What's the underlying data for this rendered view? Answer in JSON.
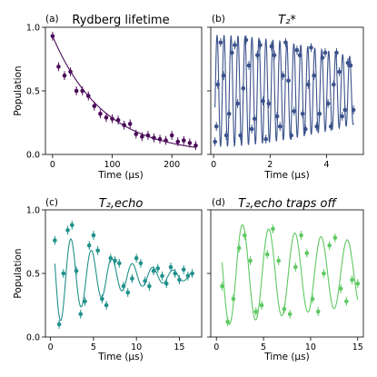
{
  "chart_data": [
    {
      "type": "scatter",
      "panel": "(a)",
      "title": "Rydberg lifetime",
      "xlabel": "Time (μs)",
      "ylabel": "Population",
      "xlim": [
        -12,
        250
      ],
      "ylim": [
        0.0,
        1.0
      ],
      "xticks": [
        0,
        100,
        200
      ],
      "yticks": [
        0.0,
        0.5,
        1.0
      ],
      "color": "#4b0c5a",
      "fit": {
        "model": "exponential",
        "A": 0.93,
        "tau": 85
      },
      "x": [
        0,
        10,
        20,
        30,
        40,
        50,
        60,
        70,
        80,
        90,
        100,
        110,
        120,
        130,
        140,
        150,
        160,
        170,
        180,
        190,
        200,
        210,
        220,
        230,
        240
      ],
      "y": [
        0.93,
        0.69,
        0.62,
        0.65,
        0.5,
        0.5,
        0.46,
        0.38,
        0.32,
        0.29,
        0.28,
        0.27,
        0.23,
        0.24,
        0.16,
        0.14,
        0.15,
        0.13,
        0.12,
        0.11,
        0.15,
        0.1,
        0.11,
        0.09,
        0.07
      ]
    },
    {
      "type": "scatter",
      "panel": "(b)",
      "title": "T₂*",
      "xlabel": "Time (μs)",
      "ylabel": "",
      "xlim": [
        -0.1,
        5.3
      ],
      "ylim": [
        0.0,
        1.0
      ],
      "xticks": [
        0,
        2,
        4
      ],
      "yticks": [
        0.0,
        0.5,
        1.0
      ],
      "color": "#3b528b",
      "fit": {
        "model": "gaussian-decaying cosine",
        "offset": 0.5,
        "amplitude": 0.44,
        "frequency": 4.05,
        "phase": 3.14159,
        "tstar": 7.0
      },
      "x": [
        0.05,
        0.1,
        0.15,
        0.25,
        0.35,
        0.45,
        0.55,
        0.65,
        0.75,
        0.85,
        0.95,
        1.05,
        1.15,
        1.25,
        1.35,
        1.45,
        1.55,
        1.65,
        1.75,
        1.85,
        1.95,
        2.05,
        2.15,
        2.25,
        2.35,
        2.45,
        2.55,
        2.65,
        2.75,
        2.85,
        2.95,
        3.05,
        3.15,
        3.25,
        3.35,
        3.45,
        3.55,
        3.65,
        3.75,
        3.85,
        3.95,
        4.05,
        4.15,
        4.25,
        4.35,
        4.45,
        4.55,
        4.65,
        4.75,
        4.85,
        4.95
      ],
      "y": [
        0.1,
        0.22,
        0.55,
        0.88,
        0.62,
        0.15,
        0.32,
        0.8,
        0.86,
        0.4,
        0.15,
        0.52,
        0.9,
        0.7,
        0.2,
        0.28,
        0.78,
        0.86,
        0.42,
        0.12,
        0.4,
        0.85,
        0.78,
        0.3,
        0.22,
        0.62,
        0.88,
        0.58,
        0.15,
        0.34,
        0.82,
        0.78,
        0.32,
        0.2,
        0.55,
        0.84,
        0.62,
        0.22,
        0.32,
        0.76,
        0.8,
        0.4,
        0.22,
        0.55,
        0.8,
        0.65,
        0.3,
        0.35,
        0.72,
        0.7,
        0.35
      ]
    },
    {
      "type": "scatter",
      "panel": "(c)",
      "title": "T₂,echo",
      "xlabel": "Time (μs)",
      "ylabel": "Population",
      "xlim": [
        -0.6,
        17.6
      ],
      "ylim": [
        0.0,
        1.0
      ],
      "xticks": [
        0,
        5,
        10,
        15
      ],
      "yticks": [
        0.0,
        0.5,
        1.0
      ],
      "color": "#21918c",
      "fit": {
        "model": "decaying cosine",
        "offset": 0.48,
        "amplitude": 0.42,
        "frequency": 0.42,
        "phase": 0.0,
        "tau": 6.5
      },
      "x": [
        0.5,
        1.0,
        1.5,
        2.0,
        2.5,
        3.0,
        3.5,
        4.0,
        4.5,
        5.0,
        5.5,
        6.0,
        6.5,
        7.0,
        7.5,
        8.0,
        8.5,
        9.0,
        9.5,
        10.0,
        10.5,
        11.0,
        11.5,
        12.0,
        12.5,
        13.0,
        13.5,
        14.0,
        14.5,
        15.0,
        15.5,
        16.0,
        16.5
      ],
      "y": [
        0.76,
        0.1,
        0.5,
        0.84,
        0.88,
        0.52,
        0.18,
        0.28,
        0.72,
        0.8,
        0.68,
        0.3,
        0.25,
        0.62,
        0.6,
        0.58,
        0.4,
        0.35,
        0.46,
        0.62,
        0.58,
        0.44,
        0.4,
        0.52,
        0.54,
        0.48,
        0.42,
        0.55,
        0.5,
        0.45,
        0.53,
        0.48,
        0.5
      ]
    },
    {
      "type": "scatter",
      "panel": "(d)",
      "title": "T₂,echo traps off",
      "xlabel": "Time (μs)",
      "ylabel": "",
      "xlim": [
        -0.6,
        15.6
      ],
      "ylim": [
        0.0,
        1.0
      ],
      "xticks": [
        0,
        5,
        10,
        15
      ],
      "yticks": [
        0.0,
        0.5,
        1.0
      ],
      "color": "#5ec962",
      "fit": {
        "model": "decaying cosine",
        "offset": 0.5,
        "amplitude": 0.42,
        "frequency": 0.36,
        "phase": 0.0,
        "tau": 30
      },
      "x": [
        0.6,
        1.2,
        1.8,
        2.4,
        3.0,
        3.6,
        4.2,
        4.8,
        5.4,
        6.0,
        6.6,
        7.2,
        7.8,
        8.4,
        9.0,
        9.6,
        10.2,
        10.8,
        11.4,
        12.0,
        12.6,
        13.2,
        13.8,
        14.4,
        15.0
      ],
      "y": [
        0.4,
        0.12,
        0.3,
        0.7,
        0.8,
        0.6,
        0.2,
        0.25,
        0.65,
        0.85,
        0.6,
        0.22,
        0.18,
        0.55,
        0.8,
        0.66,
        0.3,
        0.2,
        0.5,
        0.72,
        0.78,
        0.38,
        0.28,
        0.45,
        0.42
      ]
    }
  ]
}
